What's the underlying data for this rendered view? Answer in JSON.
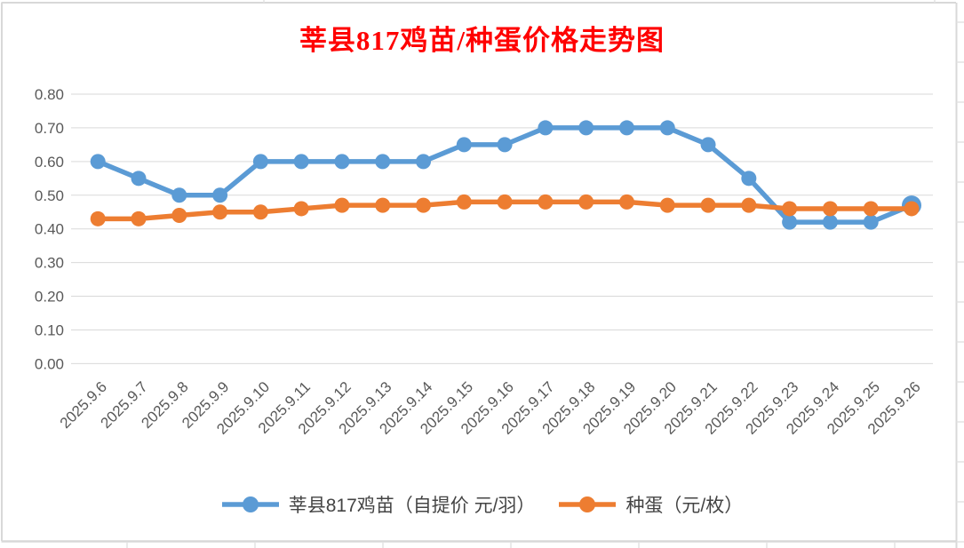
{
  "chart_data": {
    "type": "line",
    "title": "莘县817鸡苗/种蛋价格走势图",
    "title_color": "#FF0000",
    "categories": [
      "2025.9.6",
      "2025.9.7",
      "2025.9.8",
      "2025.9.9",
      "2025.9.10",
      "2025.9.11",
      "2025.9.12",
      "2025.9.13",
      "2025.9.14",
      "2025.9.15",
      "2025.9.16",
      "2025.9.17",
      "2025.9.18",
      "2025.9.19",
      "2025.9.20",
      "2025.9.21",
      "2025.9.22",
      "2025.9.23",
      "2025.9.24",
      "2025.9.25",
      "2025.9.26"
    ],
    "series": [
      {
        "name": "莘县817鸡苗（自提价 元/羽）",
        "color": "#5B9BD5",
        "marker": "circle",
        "values": [
          0.6,
          0.55,
          0.5,
          0.5,
          0.6,
          0.6,
          0.6,
          0.6,
          0.6,
          0.65,
          0.65,
          0.7,
          0.7,
          0.7,
          0.7,
          0.65,
          0.55,
          0.42,
          0.42,
          0.42,
          0.47
        ]
      },
      {
        "name": "种蛋（元/枚）",
        "color": "#ED7D31",
        "marker": "circle",
        "values": [
          0.43,
          0.43,
          0.44,
          0.45,
          0.45,
          0.46,
          0.47,
          0.47,
          0.47,
          0.48,
          0.48,
          0.48,
          0.48,
          0.48,
          0.47,
          0.47,
          0.47,
          0.46,
          0.46,
          0.46,
          0.46
        ]
      }
    ],
    "ylim": [
      0,
      0.8
    ],
    "ytick_labels": [
      "0.00",
      "0.10",
      "0.20",
      "0.30",
      "0.40",
      "0.50",
      "0.60",
      "0.70",
      "0.80"
    ],
    "xlabel": "",
    "ylabel": "",
    "grid": true,
    "legend_position": "bottom",
    "axis_text_color": "#595959",
    "gridline_color": "#D9D9D9"
  }
}
